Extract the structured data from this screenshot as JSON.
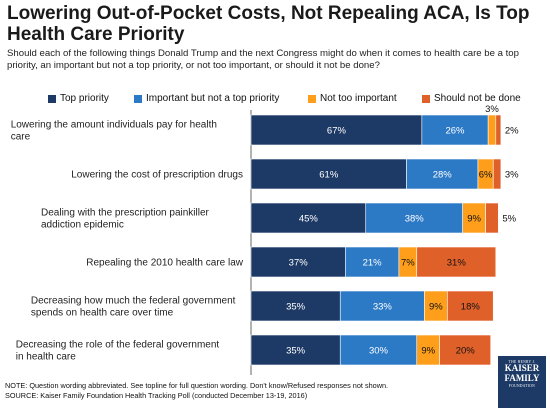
{
  "title": "Lowering Out-of-Pocket Costs, Not Repealing ACA, Is Top Health Care Priority",
  "subtitle": "Should each of the following things Donald Trump and the next Congress might do when it comes to health care be a top priority, an important but not a top priority, or not too important, or should it not be done?",
  "notes": {
    "line1": "NOTE: Question wording abbreviated. See topline for full question wording. Don't know/Refused responses not shown.",
    "line2": "SOURCE: Kaiser Family Foundation Health Tracking Poll (conducted December 13-19, 2016)"
  },
  "logo": {
    "line1": "THE HENRY J.",
    "line2": "KAISER",
    "line3": "FAMILY",
    "line4": "FOUNDATION"
  },
  "colors": {
    "top": "#1d3a66",
    "important": "#2c79c6",
    "not_too": "#ff9e1b",
    "should_not": "#e0602a"
  },
  "chart_data": {
    "type": "bar",
    "orientation": "horizontal",
    "stacked": true,
    "legend_position": "top",
    "categories": [
      "Lowering the amount individuals pay for health care",
      "Lowering the cost of prescription drugs",
      "Dealing with the prescription painkiller addiction epidemic",
      "Repealing the 2010 health care law",
      "Decreasing how much the federal government spends on health care over time",
      "Decreasing the role of the federal government in health care"
    ],
    "series": [
      {
        "name": "Top priority",
        "color": "#1d3a66",
        "values": [
          67,
          61,
          45,
          37,
          35,
          35
        ],
        "labels": [
          "67%",
          "61%",
          "45%",
          "37%",
          "35%",
          "35%"
        ]
      },
      {
        "name": "Important but not a top priority",
        "color": "#2c79c6",
        "values": [
          26,
          28,
          38,
          21,
          33,
          30
        ],
        "labels": [
          "26%",
          "28%",
          "38%",
          "21%",
          "33%",
          "30%"
        ]
      },
      {
        "name": "Not too important",
        "color": "#ff9e1b",
        "values": [
          3,
          6,
          9,
          7,
          9,
          9
        ],
        "labels": [
          "3%",
          "6%",
          "9%",
          "7%",
          "9%",
          "9%"
        ]
      },
      {
        "name": "Should not be done",
        "color": "#e0602a",
        "values": [
          2,
          3,
          5,
          31,
          18,
          20
        ],
        "labels": [
          "2%",
          "3%",
          "5%",
          "31%",
          "18%",
          "20%"
        ]
      }
    ]
  }
}
